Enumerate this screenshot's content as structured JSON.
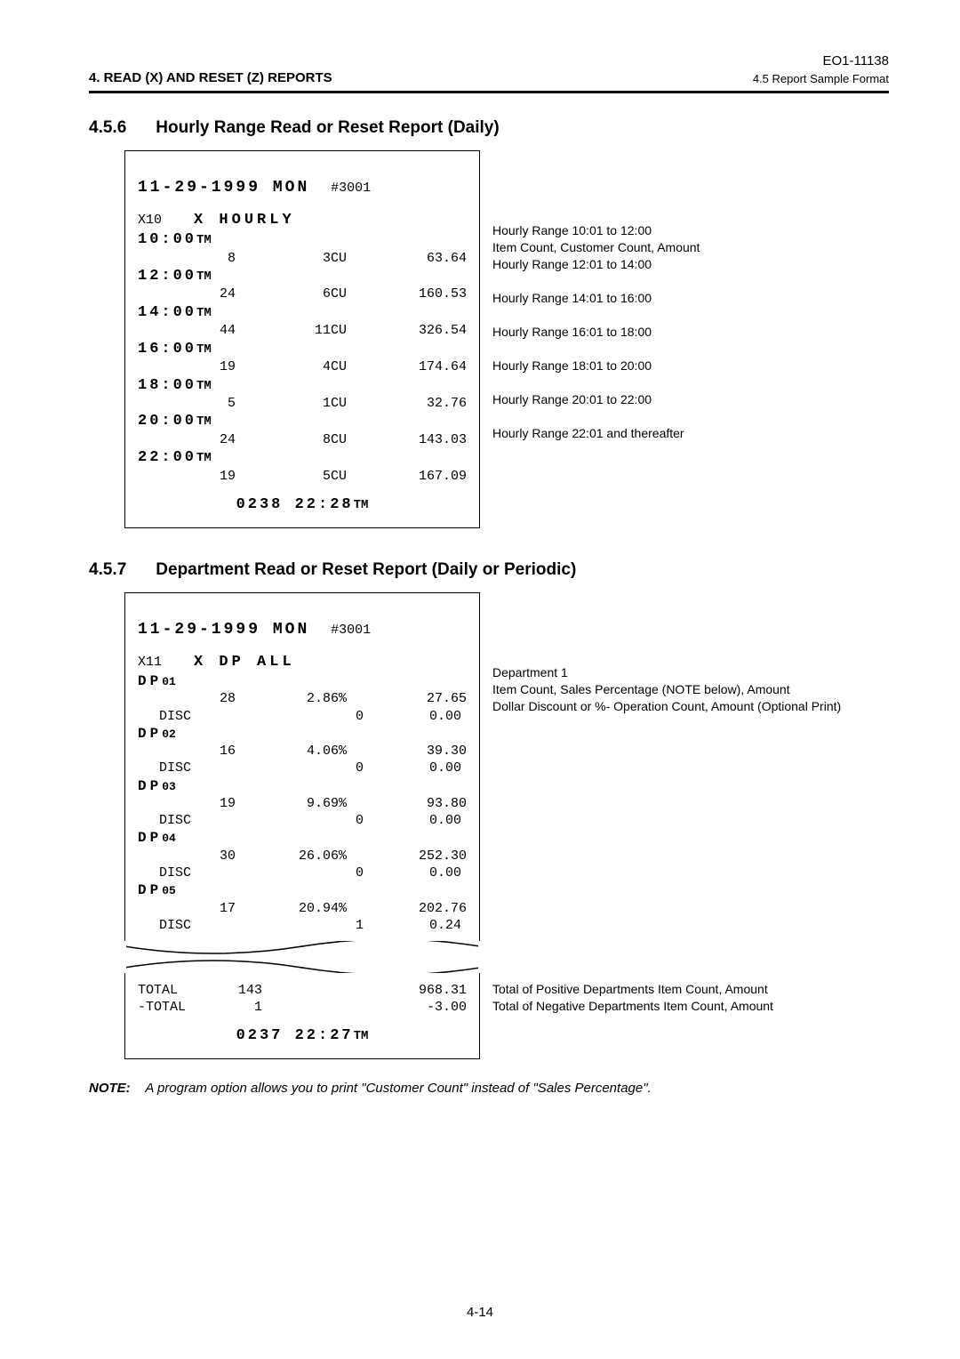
{
  "header": {
    "left": "4.   READ (X) AND RESET (Z) REPORTS",
    "doc": "EO1-11138",
    "sub": "4.5  Report Sample Format"
  },
  "sec456": {
    "num": "4.5.6",
    "title": "Hourly Range Read or Reset Report (Daily)",
    "date": "11-29-1999",
    "day": "MON",
    "ref": "#3001",
    "xcode": "X10",
    "xtitle": "X  HOURLY",
    "rows": [
      {
        "time": "10:00",
        "cnt": "8",
        "cu": "3CU",
        "amt": "63.64",
        "annot_t": "Hourly Range 10:01 to 12:00",
        "annot_d": "Item Count, Customer Count, Amount"
      },
      {
        "time": "12:00",
        "cnt": "24",
        "cu": "6CU",
        "amt": "160.53",
        "annot_t": "Hourly Range 12:01 to 14:00",
        "annot_d": ""
      },
      {
        "time": "14:00",
        "cnt": "44",
        "cu": "11CU",
        "amt": "326.54",
        "annot_t": "Hourly Range 14:01 to 16:00",
        "annot_d": ""
      },
      {
        "time": "16:00",
        "cnt": "19",
        "cu": "4CU",
        "amt": "174.64",
        "annot_t": "Hourly Range 16:01 to 18:00",
        "annot_d": ""
      },
      {
        "time": "18:00",
        "cnt": "5",
        "cu": "1CU",
        "amt": "32.76",
        "annot_t": "Hourly Range 18:01 to 20:00",
        "annot_d": ""
      },
      {
        "time": "20:00",
        "cnt": "24",
        "cu": "8CU",
        "amt": "143.03",
        "annot_t": "Hourly Range 20:01 to 22:00",
        "annot_d": ""
      },
      {
        "time": "22:00",
        "cnt": "19",
        "cu": "5CU",
        "amt": "167.09",
        "annot_t": "Hourly Range 22:01 and thereafter",
        "annot_d": ""
      }
    ],
    "footer": "0238  22:28"
  },
  "sec457": {
    "num": "4.5.7",
    "title": "Department Read or Reset Report (Daily or Periodic)",
    "date": "11-29-1999",
    "day": "MON",
    "ref": "#3001",
    "xcode": "X11",
    "xtitle": "X  DP  ALL",
    "rows": [
      {
        "dp": "01",
        "cnt": "28",
        "pct": "2.86%",
        "amt": "27.65",
        "dcnt": "0",
        "damt": "0.00",
        "annot": [
          "Department 1",
          "Item Count, Sales Percentage (NOTE below), Amount",
          "Dollar Discount or %- Operation Count, Amount (Optional Print)"
        ]
      },
      {
        "dp": "02",
        "cnt": "16",
        "pct": "4.06%",
        "amt": "39.30",
        "dcnt": "0",
        "damt": "0.00",
        "annot": [
          "",
          "",
          ""
        ]
      },
      {
        "dp": "03",
        "cnt": "19",
        "pct": "9.69%",
        "amt": "93.80",
        "dcnt": "0",
        "damt": "0.00",
        "annot": [
          "",
          "",
          ""
        ]
      },
      {
        "dp": "04",
        "cnt": "30",
        "pct": "26.06%",
        "amt": "252.30",
        "dcnt": "0",
        "damt": "0.00",
        "annot": [
          "",
          "",
          ""
        ]
      },
      {
        "dp": "05",
        "cnt": "17",
        "pct": "20.94%",
        "amt": "202.76",
        "dcnt": "1",
        "damt": "0.24",
        "annot": [
          "",
          "",
          ""
        ]
      }
    ],
    "totals": {
      "pos_lbl": "TOTAL",
      "pos_cnt": "143",
      "pos_amt": "968.31",
      "pos_annot": "Total of Positive Departments Item Count, Amount",
      "neg_lbl": "-TOTAL",
      "neg_cnt": "1",
      "neg_amt": "-3.00",
      "neg_annot": "Total of Negative Departments Item Count, Amount"
    },
    "footer": "0237  22:27",
    "disc_lbl": "DISC"
  },
  "note": {
    "lbl": "NOTE:",
    "txt": "A program option allows you to print \"Customer Count\" instead of \"Sales Percentage\"."
  },
  "page": "4-14"
}
